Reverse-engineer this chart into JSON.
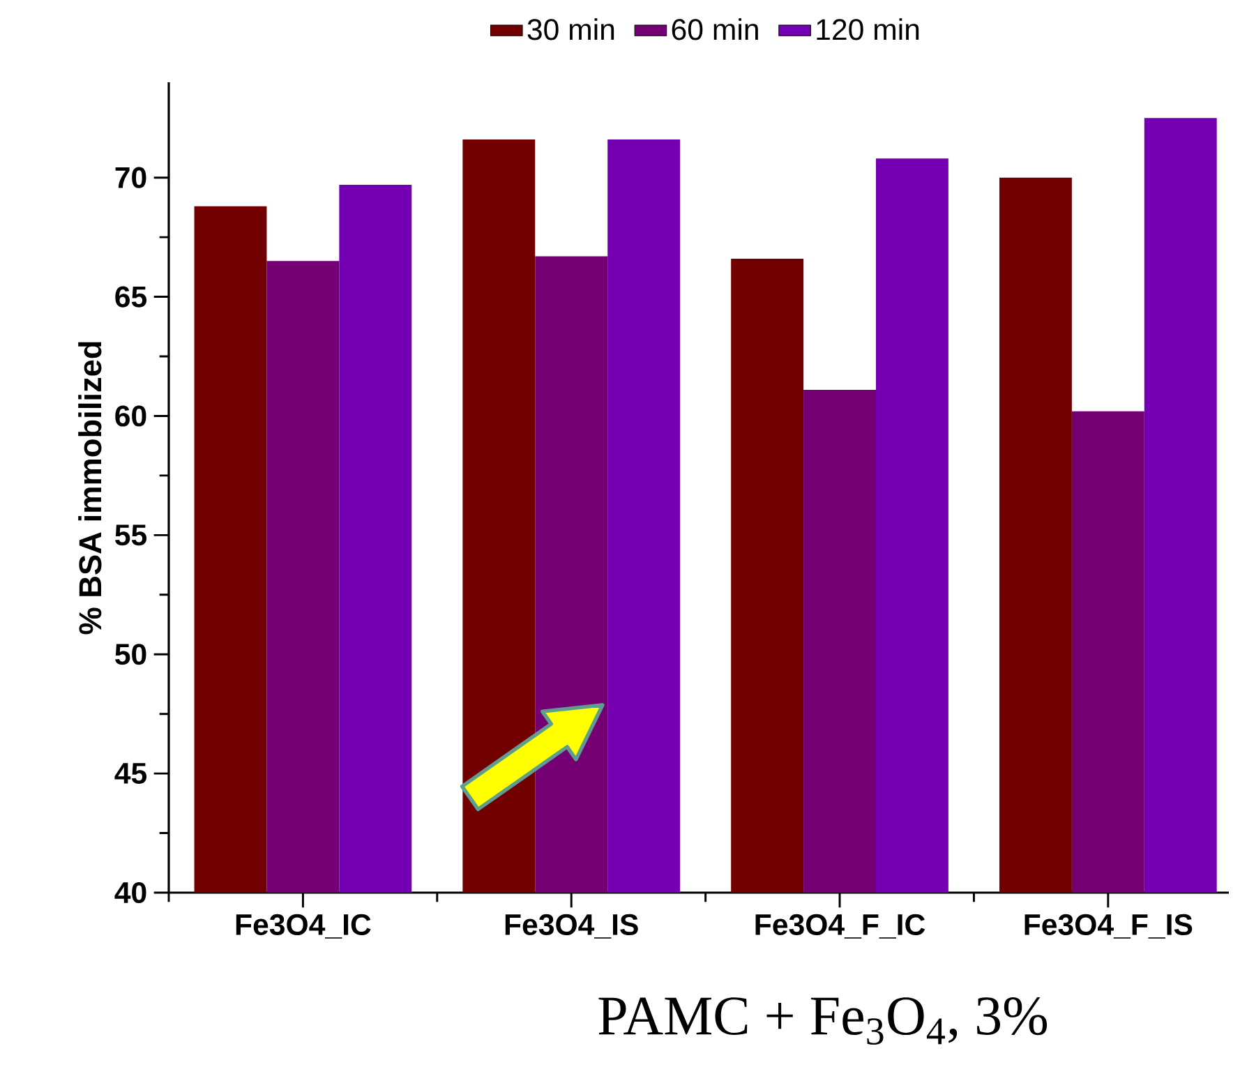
{
  "chart_data": {
    "type": "bar",
    "ylabel": "% BSA immobilized",
    "categories": [
      "Fe3O4_IC",
      "Fe3O4_IS",
      "Fe3O4_F_IC",
      "Fe3O4_F_IS"
    ],
    "series": [
      {
        "name": "30 min",
        "color": "#720000",
        "values": [
          68.8,
          71.6,
          66.6,
          70.0
        ]
      },
      {
        "name": "60 min",
        "color": "#750073",
        "values": [
          66.5,
          66.7,
          61.1,
          60.2
        ]
      },
      {
        "name": "120 min",
        "color": "#7500b3",
        "values": [
          69.7,
          71.6,
          70.8,
          72.5
        ]
      }
    ],
    "ylim": [
      40,
      74
    ],
    "yticks": [
      40,
      45,
      50,
      55,
      60,
      65,
      70
    ],
    "legend": "top",
    "grid": false,
    "annotations": [
      "PAMC + Fe$_{3}$O$_{4}$, 3%"
    ]
  }
}
